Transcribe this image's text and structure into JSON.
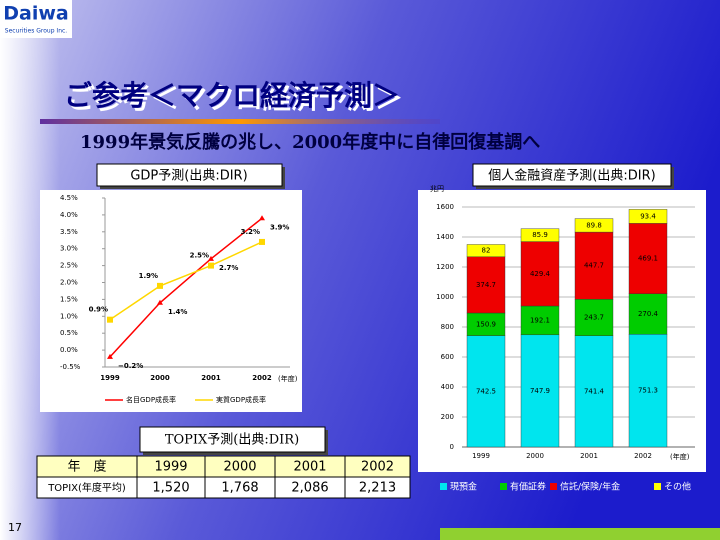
{
  "logo": {
    "name": "Daiwa",
    "sub": "Securities Group Inc."
  },
  "title": "ご参考＜マクロ経済予測＞",
  "subtitle": "1999年景気反騰の兆し、2000年度中に自律回復基調へ",
  "page_number": "17",
  "chart_data": [
    {
      "type": "line",
      "title": "GDP予測(出典:DIR)",
      "categories": [
        "1999",
        "2000",
        "2001",
        "2002"
      ],
      "x_label": "(年度)",
      "series": [
        {
          "name": "名目GDP成長率",
          "color": "#ff0000",
          "values": [
            -0.2,
            1.4,
            2.7,
            3.9
          ],
          "value_labels": [
            "−0.2%",
            "1.4%",
            "2.7%",
            "3.9%"
          ]
        },
        {
          "name": "実質GDP成長率",
          "color": "#ffd700",
          "values": [
            0.9,
            1.9,
            2.5,
            3.2
          ],
          "value_labels": [
            "0.9%",
            "1.9%",
            "2.5%",
            "3.2%"
          ]
        }
      ],
      "ylim": [
        -0.5,
        4.5
      ],
      "yticks": [
        {
          "value": -0.5,
          "label": "-0.5%"
        },
        {
          "value": 0,
          "label": "0.0%"
        },
        {
          "value": 0.5,
          "label": "0.5%"
        },
        {
          "value": 1,
          "label": "1.0%"
        },
        {
          "value": 1.5,
          "label": "1.5%"
        },
        {
          "value": 2,
          "label": "2.0%"
        },
        {
          "value": 2.5,
          "label": "2.5%"
        },
        {
          "value": 3,
          "label": "3.0%"
        },
        {
          "value": 3.5,
          "label": "3.5%"
        },
        {
          "value": 4,
          "label": "4.0%"
        },
        {
          "value": 4.5,
          "label": "4.5%"
        }
      ],
      "legend": "bottom"
    },
    {
      "type": "stacked_bar",
      "title": "個人金融資産予測(出典:DIR)",
      "y_label": "兆円",
      "x_label": "(年度)",
      "categories": [
        "1999",
        "2000",
        "2001",
        "2002"
      ],
      "series": [
        {
          "name": "現預金",
          "color": "#00e5ee",
          "values": [
            742.5,
            747.9,
            741.4,
            751.3
          ]
        },
        {
          "name": "有価証券",
          "color": "#00cc00",
          "values": [
            150.9,
            192.1,
            243.7,
            270.4
          ]
        },
        {
          "name": "信託/保険/年金",
          "color": "#ee0000",
          "values": [
            374.7,
            429.4,
            447.7,
            469.1
          ]
        },
        {
          "name": "その他",
          "color": "#ffff00",
          "values": [
            82,
            85.9,
            89.8,
            93.4
          ]
        }
      ],
      "ylim": [
        0,
        1600
      ],
      "yticks": [
        0,
        200,
        400,
        600,
        800,
        1000,
        1200,
        1400,
        1600
      ],
      "grid": true,
      "legend": "bottom"
    }
  ],
  "table": {
    "title": "TOPIX予測(出典:DIR)",
    "header": [
      "年　度",
      "1999",
      "2000",
      "2001",
      "2002"
    ],
    "rows": [
      [
        "TOPIX(年度平均)",
        "1,520",
        "1,768",
        "2,086",
        "2,213"
      ]
    ]
  }
}
